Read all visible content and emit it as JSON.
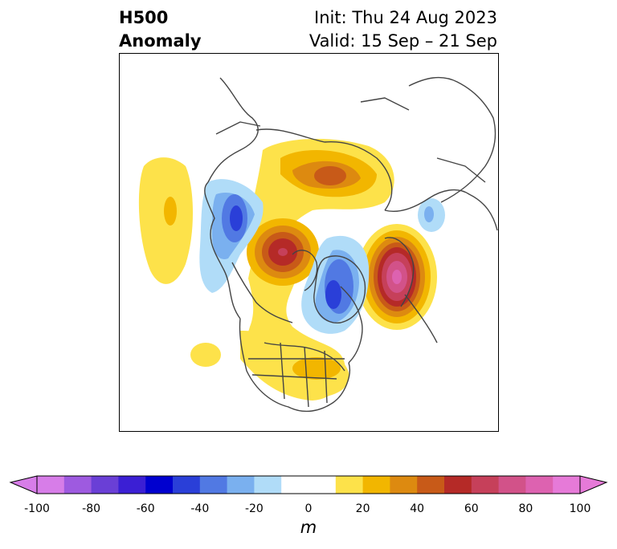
{
  "title": {
    "variable": "H500",
    "kind": "Anomaly",
    "init": "Init: Thu 24 Aug 2023",
    "valid": "Valid: 15 Sep – 21 Sep"
  },
  "colorbar": {
    "label": "m",
    "ticks": [
      "-100",
      "-80",
      "-60",
      "-40",
      "-20",
      "0",
      "20",
      "40",
      "60",
      "80",
      "100"
    ],
    "colors": [
      "#d77de8",
      "#9e5ae0",
      "#6a3fd6",
      "#3b1fd4",
      "#0000cf",
      "#2a3fd8",
      "#5179e3",
      "#7ab0ef",
      "#b0dcf8",
      "#ffffff",
      "#ffffff",
      "#fde24a",
      "#f2b600",
      "#dd8a10",
      "#c85a18",
      "#b52a27",
      "#c6405a",
      "#d25289",
      "#dd62b0",
      "#e67ad8"
    ]
  },
  "colors": {
    "coast": "#444444",
    "anomaly_pos": [
      "#fde24a",
      "#f2b600",
      "#dd8a10",
      "#c85a18",
      "#b52a27",
      "#c6405a",
      "#d25289"
    ],
    "anomaly_neg": [
      "#b0dcf8",
      "#7ab0ef",
      "#5179e3",
      "#2a3fd8"
    ]
  }
}
